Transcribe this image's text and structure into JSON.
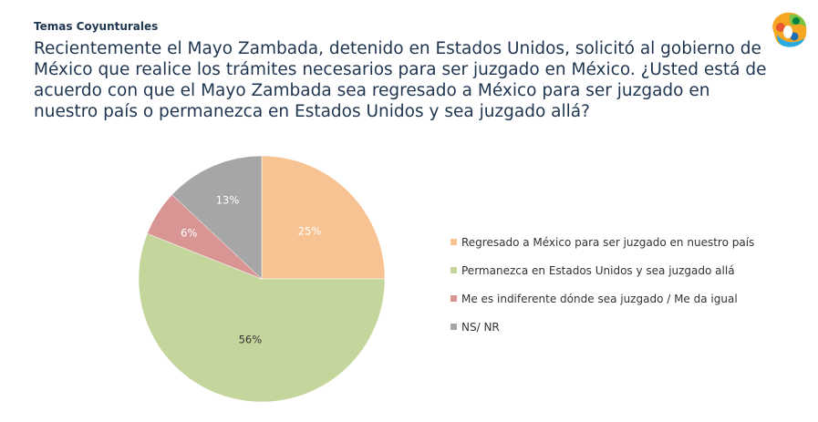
{
  "header": {
    "section_label": "Temas Coyunturales",
    "question": "Recientemente el Mayo Zambada, detenido en Estados Unidos, solicitó al gobierno de México que realice los trámites necesarios para ser juzgado en México. ¿Usted está de acuerdo con que el Mayo Zambada sea regresado a México para ser juzgado en nuestro país o permanezca en Estados Unidos y sea juzgado allá?"
  },
  "logo": {
    "icon": "brand-logo-icon",
    "colors": [
      "#e8572f",
      "#f5a623",
      "#7dc242",
      "#29abe2",
      "#00843d"
    ]
  },
  "chart_data": {
    "type": "pie",
    "title": "",
    "start_angle_deg": 90,
    "direction": "clockwise",
    "legend_position": "right",
    "slices": [
      {
        "name": "Regresado a México para ser juzgado en nuestro país",
        "value": 25,
        "label": "25%",
        "color": "#f8c393",
        "label_color": "#ffffff"
      },
      {
        "name": "Permanezca en Estados Unidos y sea juzgado allá",
        "value": 56,
        "label": "56%",
        "color": "#c5d69d",
        "label_color": "#333333"
      },
      {
        "name": "Me es indiferente dónde sea juzgado / Me da igual",
        "value": 6,
        "label": "6%",
        "color": "#d99594",
        "label_color": "#ffffff"
      },
      {
        "name": "NS/ NR",
        "value": 13,
        "label": "13%",
        "color": "#a6a6a6",
        "label_color": "#ffffff"
      }
    ]
  }
}
